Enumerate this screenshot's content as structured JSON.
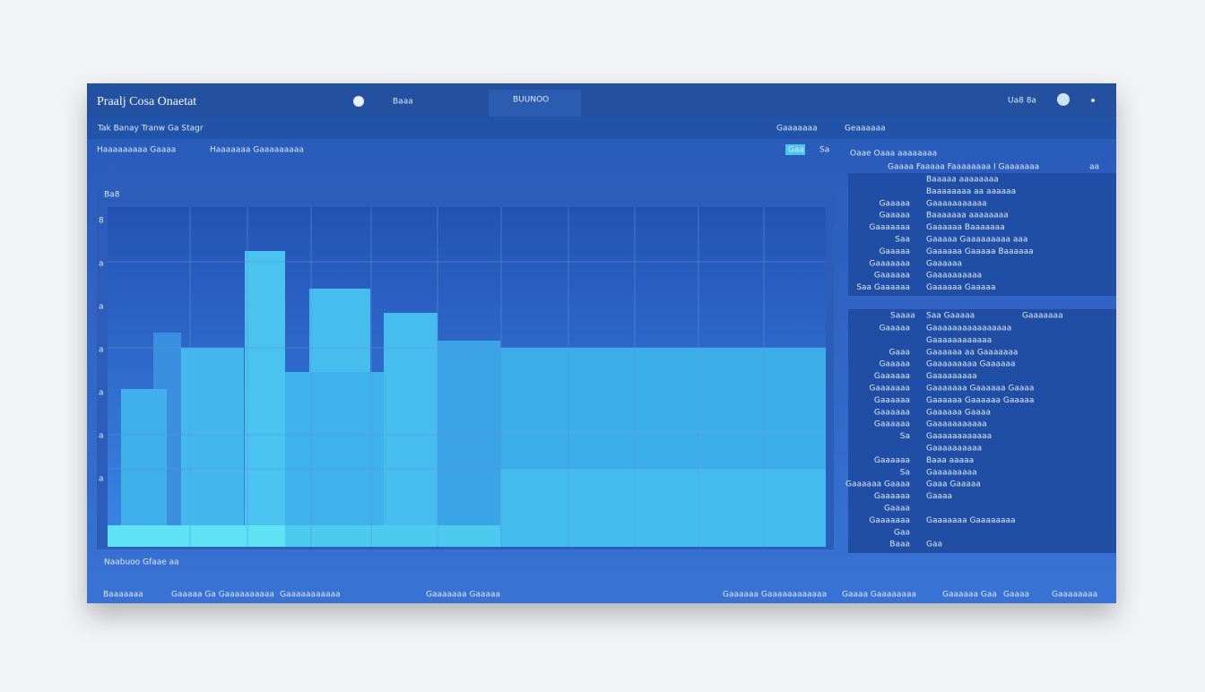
{
  "header": {
    "title": "Praalj Cosa Onaetat",
    "tab": "Baaa",
    "tab_alt": "BUUNOO",
    "user": "Ua8 8a"
  },
  "subheader": {
    "breadcrumb": "Tak Banay Tranw Ga Stagr",
    "buttons": [
      "Gaaaaaaa",
      "Geaaaaaa"
    ]
  },
  "filters": [
    "Haaaaaaaaa Gaaaa",
    "Haaaaaaa Gaaaaaaaaa"
  ],
  "toolbar": [
    "Gaa",
    "Sa"
  ],
  "chart_panel": {
    "label": "Ba8",
    "y_labels": [
      "8",
      "a",
      "a",
      "a",
      "a",
      "a",
      "a"
    ],
    "caption": "Naabuoo Gfaae aa"
  },
  "side_panel": {
    "title": "Oaae Oaaa aaaaaaaa",
    "header": "Gaaaa Faaaaa Faaaaaaaa I Gaaaaaaa",
    "header_right": "aa",
    "block1": [
      [
        "",
        "Baaaaa aaaaaaaa"
      ],
      [
        "",
        "Baaaaaaaa aa aaaaaa"
      ],
      [
        "Gaaaaa",
        "Gaaaaaaaaaaa"
      ],
      [
        "Gaaaaa",
        "Baaaaaaa aaaaaaaa"
      ],
      [
        "Gaaaaaaa",
        "Gaaaaaa Baaaaaaa"
      ],
      [
        "Saa",
        "Gaaaaa Gaaaaaaaaa aaa"
      ],
      [
        "Gaaaaa",
        "Gaaaaaa Gaaaaa Baaaaaa"
      ],
      [
        "Gaaaaaaa",
        "Gaaaaaa"
      ],
      [
        "Gaaaaaa",
        "Gaaaaaaaaaa"
      ],
      [
        "Saa Gaaaaaa",
        "Gaaaaaa Gaaaaa"
      ]
    ],
    "block2_header": [
      "Saaaa",
      "Saa Gaaaaa",
      "Gaaaaaaa"
    ],
    "block2": [
      [
        "Gaaaaa",
        "Gaaaaaaaaaaaaaaaa"
      ],
      [
        "",
        "Gaaaaaaaaaaaa"
      ],
      [
        "Gaaa",
        "Gaaaaaa aa Gaaaaaaa"
      ],
      [
        "Gaaaaa",
        "Gaaaaaaaaa Gaaaaaa"
      ],
      [
        "Gaaaaaa",
        "Gaaaaaaaaa"
      ],
      [
        "Gaaaaaaa",
        "Gaaaaaaa Gaaaaaa Gaaaa"
      ],
      [
        "Gaaaaaa",
        "Gaaaaaa Gaaaaaa Gaaaaa"
      ],
      [
        "Gaaaaaa",
        "Gaaaaaa Gaaaa"
      ],
      [
        "Gaaaaaa",
        "Gaaaaaaaaaaa"
      ],
      [
        "Sa",
        "Gaaaaaaaaaaaa"
      ],
      [
        "",
        "Gaaaaaaaaaa"
      ],
      [
        "Gaaaaaa",
        "Baaa aaaaa"
      ],
      [
        "Sa",
        "Gaaaaaaaaa"
      ],
      [
        "Gaaaaaa Gaaaa",
        "Gaaa Gaaaaa"
      ],
      [
        "Gaaaaaa",
        "Gaaaa"
      ],
      [
        "Gaaaa",
        ""
      ],
      [
        "Gaaaaaaa",
        "Gaaaaaaa Gaaaaaaaa"
      ],
      [
        "Gaa",
        ""
      ],
      [
        "Baaa",
        "Gaa"
      ]
    ]
  },
  "footer": [
    "Baaaaaaa",
    "Gaaaaa Ga Gaaaaaaaaaa",
    "Gaaaaaaaaaaa",
    "Gaaaaaaa Gaaaaa",
    "Gaaaaaa Gaaaaaaaaaaaa",
    "Gaaaa Gaaaaaaaa",
    "Gaaaaaa Gaa",
    "Gaaaa",
    "Gaaaaaaaa"
  ]
}
